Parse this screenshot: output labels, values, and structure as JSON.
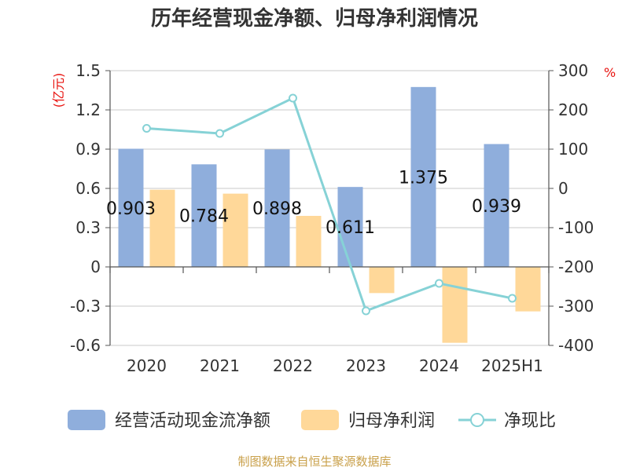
{
  "chart_data": {
    "type": "bar",
    "title": "历年经营现金净额、归母净利润情况",
    "categories": [
      "2020",
      "2021",
      "2022",
      "2023",
      "2024",
      "2025H1"
    ],
    "series": [
      {
        "name": "经营活动现金流净额",
        "type": "bar",
        "axis": "left",
        "color": "#8faedc",
        "values": [
          0.903,
          0.784,
          0.898,
          0.611,
          1.375,
          0.939
        ],
        "labels": [
          "0.903",
          "0.784",
          "0.898",
          "0.611",
          "1.375",
          "0.939"
        ]
      },
      {
        "name": "归母净利润",
        "type": "bar",
        "axis": "left",
        "color": "#ffd899",
        "values": [
          0.59,
          0.56,
          0.39,
          -0.2,
          -0.58,
          -0.34
        ]
      },
      {
        "name": "净现比",
        "type": "line",
        "axis": "right",
        "color": "#86d2d6",
        "values": [
          153,
          140,
          230,
          -312,
          -242,
          -280
        ]
      }
    ],
    "yleft": {
      "label": "(亿元)",
      "ticks": [
        "1.5",
        "1.2",
        "0.9",
        "0.6",
        "0.3",
        "0",
        "-0.3",
        "-0.6"
      ],
      "range": [
        -0.6,
        1.5
      ]
    },
    "yright": {
      "label": "%",
      "ticks": [
        "300",
        "200",
        "100",
        "0",
        "-100",
        "-200",
        "-300",
        "-400"
      ],
      "range": [
        -400,
        300
      ]
    },
    "grid": true,
    "legend": "bottom",
    "source": "制图数据来自恒生聚源数据库"
  }
}
